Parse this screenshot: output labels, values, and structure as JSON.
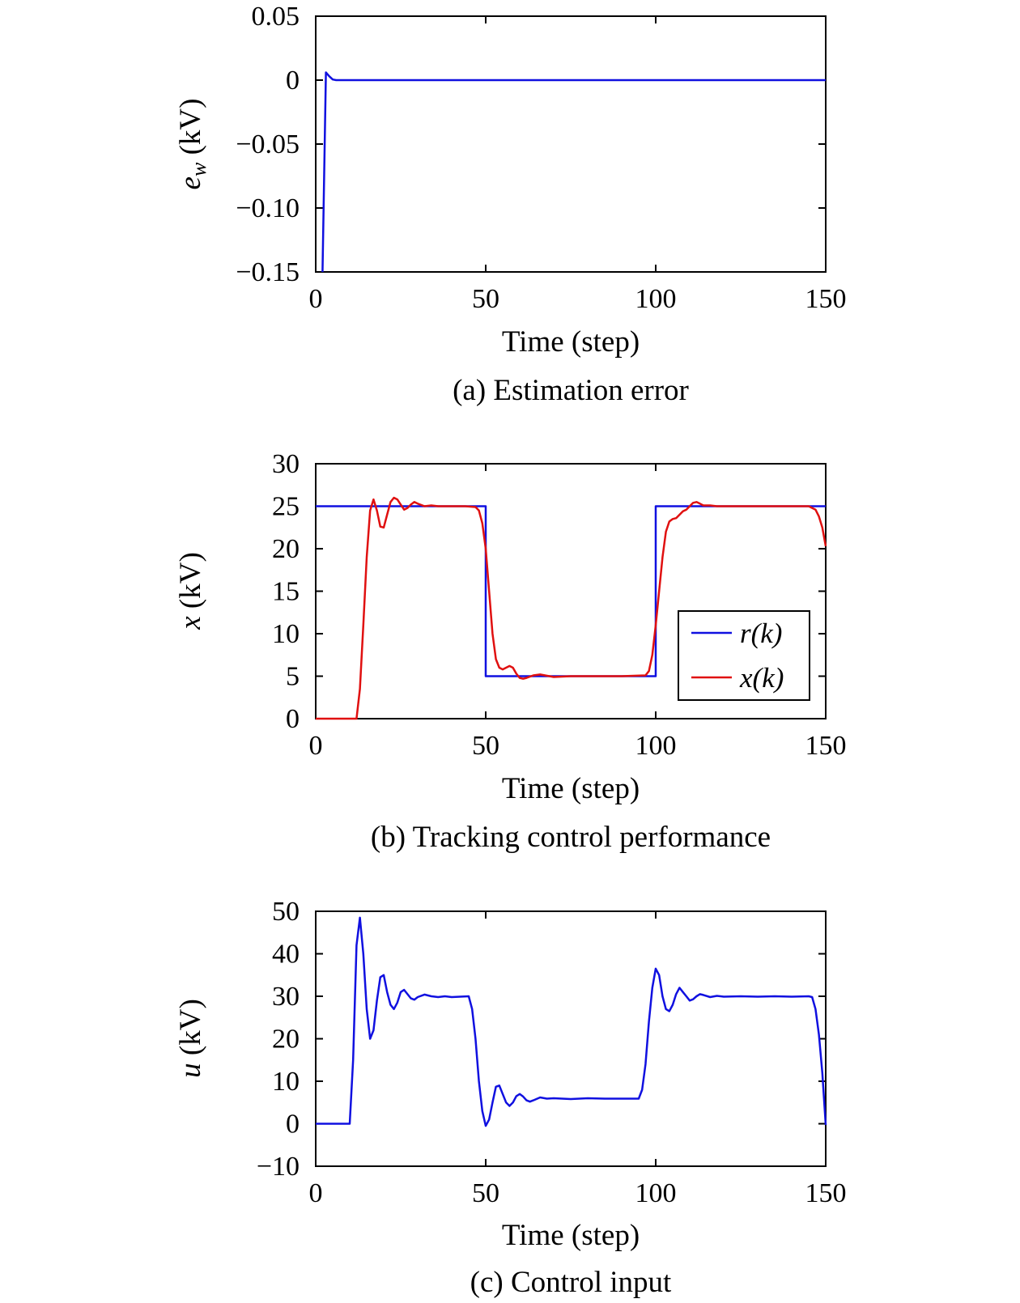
{
  "chart_data": [
    {
      "type": "line",
      "caption": "(a) Estimation error",
      "xlabel": "Time (step)",
      "ylabel": "e_w (kV)",
      "ylabel_main": "e",
      "ylabel_sub": "w",
      "ylabel_unit": " (kV)",
      "xlim": [
        0,
        150
      ],
      "ylim": [
        -0.15,
        0.05
      ],
      "xticks": [
        0,
        50,
        100,
        150
      ],
      "xtick_labels": [
        "0",
        "50",
        "100",
        "150"
      ],
      "yticks": [
        0.05,
        0,
        -0.05,
        -0.1,
        -0.15
      ],
      "ytick_labels": [
        "0.05",
        "0",
        "−0.05",
        "−0.10",
        "−0.15"
      ],
      "grid": false,
      "series": [
        {
          "color": "#1010e0",
          "x": [
            2,
            3,
            4,
            5,
            6,
            10,
            20,
            50,
            100,
            150
          ],
          "y": [
            -0.15,
            0.006,
            0.003,
            0.0005,
            0,
            0,
            0,
            0,
            0,
            0
          ]
        }
      ]
    },
    {
      "type": "line",
      "caption": "(b) Tracking control performance",
      "xlabel": "Time (step)",
      "ylabel": "x (kV)",
      "ylabel_main": "x",
      "ylabel_sub": "",
      "ylabel_unit": " (kV)",
      "xlim": [
        0,
        150
      ],
      "ylim": [
        0,
        30
      ],
      "xticks": [
        0,
        50,
        100,
        150
      ],
      "xtick_labels": [
        "0",
        "50",
        "100",
        "150"
      ],
      "yticks": [
        30,
        25,
        20,
        15,
        10,
        5,
        0
      ],
      "ytick_labels": [
        "30",
        "25",
        "20",
        "15",
        "10",
        "5",
        "0"
      ],
      "grid": false,
      "legend": {
        "position": "inside-right",
        "entries": [
          "r(k)",
          "x(k)"
        ]
      },
      "series": [
        {
          "name": "r(k)",
          "color": "#1010e0",
          "x": [
            0,
            50,
            50,
            100,
            100,
            150
          ],
          "y": [
            25,
            25,
            5,
            5,
            25,
            25
          ]
        },
        {
          "name": "x(k)",
          "color": "#e01010",
          "x": [
            0,
            12,
            13,
            14,
            15,
            16,
            17,
            18,
            19,
            20,
            21,
            22,
            23,
            24,
            25,
            26,
            27,
            28,
            29,
            30,
            32,
            34,
            36,
            40,
            44,
            47,
            48,
            49,
            50,
            51,
            52,
            53,
            54,
            55,
            56,
            57,
            58,
            59,
            60,
            61,
            62,
            64,
            66,
            70,
            75,
            80,
            90,
            97,
            98,
            99,
            100,
            101,
            102,
            103,
            104,
            105,
            106,
            107,
            108,
            109,
            110,
            111,
            112,
            113,
            114,
            116,
            118,
            125,
            135,
            145,
            147,
            148,
            149,
            150
          ],
          "y": [
            0,
            0,
            3.5,
            11,
            19,
            24.5,
            25.8,
            24.5,
            22.6,
            22.5,
            24,
            25.5,
            26,
            25.8,
            25.2,
            24.6,
            24.8,
            25.2,
            25.5,
            25.3,
            25,
            25.1,
            25,
            25,
            25,
            24.9,
            24.5,
            23,
            20,
            15,
            10,
            7,
            6,
            5.8,
            6,
            6.2,
            6,
            5.3,
            4.8,
            4.7,
            4.8,
            5.1,
            5.2,
            4.9,
            5,
            5,
            5,
            5.1,
            5.6,
            7.5,
            11,
            15,
            19,
            22,
            23.2,
            23.5,
            23.6,
            24,
            24.4,
            24.6,
            25,
            25.4,
            25.5,
            25.3,
            25.1,
            25.1,
            25,
            25,
            25,
            25,
            24.6,
            23.8,
            22.5,
            20.3
          ]
        }
      ]
    },
    {
      "type": "line",
      "caption": "(c) Control input",
      "xlabel": "Time (step)",
      "ylabel": "u (kV)",
      "ylabel_main": "u",
      "ylabel_sub": "",
      "ylabel_unit": " (kV)",
      "xlim": [
        0,
        150
      ],
      "ylim": [
        -10,
        50
      ],
      "xticks": [
        0,
        50,
        100,
        150
      ],
      "xtick_labels": [
        "0",
        "50",
        "100",
        "150"
      ],
      "yticks": [
        50,
        40,
        30,
        20,
        10,
        0,
        -10
      ],
      "ytick_labels": [
        "50",
        "40",
        "30",
        "20",
        "10",
        "0",
        "−10"
      ],
      "grid": false,
      "series": [
        {
          "color": "#1010e0",
          "x": [
            0,
            10,
            11,
            12,
            13,
            14,
            15,
            16,
            17,
            18,
            19,
            20,
            21,
            22,
            23,
            24,
            25,
            26,
            27,
            28,
            29,
            30,
            32,
            34,
            36,
            38,
            40,
            45,
            46,
            47,
            48,
            49,
            50,
            51,
            52,
            53,
            54,
            55,
            56,
            57,
            58,
            59,
            60,
            61,
            62,
            63,
            64,
            66,
            68,
            70,
            75,
            80,
            85,
            90,
            95,
            96,
            97,
            98,
            99,
            100,
            101,
            102,
            103,
            104,
            105,
            106,
            107,
            108,
            109,
            110,
            111,
            112,
            113,
            114,
            116,
            118,
            120,
            125,
            130,
            135,
            140,
            145,
            146,
            147,
            148,
            149,
            150
          ],
          "y": [
            0,
            0,
            15,
            42,
            48.5,
            40,
            27,
            20,
            22,
            29,
            34.5,
            35,
            31,
            28,
            27,
            28.5,
            31,
            31.5,
            30.5,
            29.5,
            29.2,
            29.8,
            30.4,
            30,
            29.8,
            30,
            29.8,
            30,
            27,
            20,
            10,
            3,
            -0.5,
            1,
            5,
            8.7,
            9,
            7,
            5,
            4.2,
            5,
            6.5,
            7,
            6.4,
            5.5,
            5.2,
            5.5,
            6.2,
            5.9,
            6,
            5.8,
            6,
            5.9,
            5.9,
            5.9,
            8,
            14,
            24,
            32,
            36.5,
            35,
            30,
            27,
            26.5,
            28,
            30.5,
            32,
            31,
            30,
            29,
            29.3,
            30,
            30.5,
            30.3,
            29.8,
            30.1,
            29.9,
            30,
            29.9,
            30,
            29.9,
            30,
            29.8,
            27,
            21,
            12,
            -0.3
          ]
        }
      ]
    }
  ]
}
